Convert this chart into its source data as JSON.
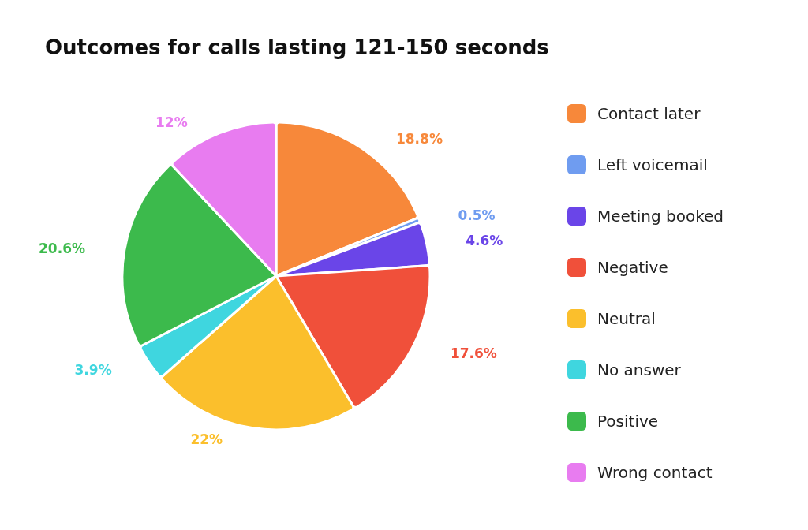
{
  "chart_data": {
    "type": "pie",
    "title": "Outcomes for calls lasting 121-150 seconds",
    "categories": [
      "Contact later",
      "Left voicemail",
      "Meeting booked",
      "Negative",
      "Neutral",
      "No answer",
      "Positive",
      "Wrong contact"
    ],
    "values": [
      18.8,
      0.5,
      4.6,
      17.6,
      22,
      3.9,
      20.6,
      12
    ],
    "colors": [
      "#f7883a",
      "#6f9cf0",
      "#6a45e8",
      "#f0503a",
      "#fbbf2c",
      "#3fd6df",
      "#3cba4c",
      "#e87cf0"
    ],
    "value_labels": [
      "18.8%",
      "0.5%",
      "4.6%",
      "17.6%",
      "22%",
      "3.9%",
      "20.6%",
      "12%"
    ],
    "legend": "right"
  }
}
